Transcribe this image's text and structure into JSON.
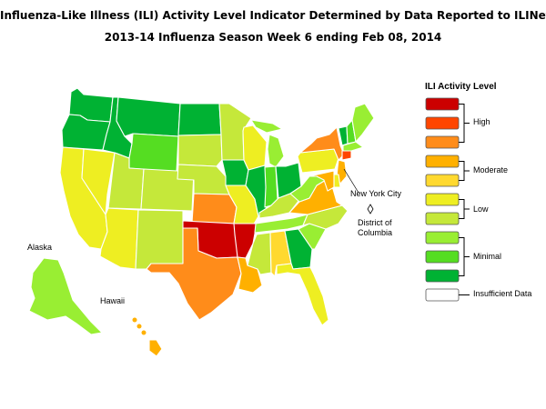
{
  "header": {
    "title": "Influenza-Like Illness (ILI) Activity Level Indicator Determined by Data Reported to ILINet",
    "subtitle": "2013-14  Influenza Season Week  6 ending Feb 08, 2014"
  },
  "legend": {
    "title": "ILI Activity Level",
    "levels": [
      {
        "level": 10,
        "color": "#cc0000"
      },
      {
        "level": 9,
        "color": "#ff4500"
      },
      {
        "level": 8,
        "color": "#ff8c1a"
      },
      {
        "level": 7,
        "color": "#ffb000"
      },
      {
        "level": 6,
        "color": "#ffd92f"
      },
      {
        "level": 5,
        "color": "#eeee22"
      },
      {
        "level": 4,
        "color": "#c5e83a"
      },
      {
        "level": 3,
        "color": "#99ee33"
      },
      {
        "level": 2,
        "color": "#55dd22"
      },
      {
        "level": 1,
        "color": "#00b233"
      }
    ],
    "groups": [
      {
        "label": "High"
      },
      {
        "label": "Moderate"
      },
      {
        "label": "Low"
      },
      {
        "label": "Minimal"
      }
    ],
    "insufficient": {
      "label": "Insufficient Data",
      "color": "#ffffff"
    }
  },
  "labels": {
    "nyc": "New York City",
    "dc": "District of Columbia",
    "alaska": "Alaska",
    "hawaii": "Hawaii"
  },
  "regions": [
    {
      "name": "WA",
      "level": 1
    },
    {
      "name": "OR",
      "level": 1
    },
    {
      "name": "CA",
      "level": 5
    },
    {
      "name": "NV",
      "level": 5
    },
    {
      "name": "ID",
      "level": 1
    },
    {
      "name": "MT",
      "level": 1
    },
    {
      "name": "WY",
      "level": 2
    },
    {
      "name": "UT",
      "level": 4
    },
    {
      "name": "CO",
      "level": 4
    },
    {
      "name": "AZ",
      "level": 5
    },
    {
      "name": "NM",
      "level": 4
    },
    {
      "name": "ND",
      "level": 1
    },
    {
      "name": "SD",
      "level": 4
    },
    {
      "name": "NE",
      "level": 4
    },
    {
      "name": "KS",
      "level": 8
    },
    {
      "name": "OK",
      "level": 10
    },
    {
      "name": "TX",
      "level": 8
    },
    {
      "name": "MN",
      "level": 4
    },
    {
      "name": "IA",
      "level": 1
    },
    {
      "name": "MO",
      "level": 5
    },
    {
      "name": "AR",
      "level": 10
    },
    {
      "name": "LA",
      "level": 7
    },
    {
      "name": "WI",
      "level": 5
    },
    {
      "name": "IL",
      "level": 1
    },
    {
      "name": "MI",
      "level": 3
    },
    {
      "name": "IN",
      "level": 2
    },
    {
      "name": "OH",
      "level": 1
    },
    {
      "name": "KY",
      "level": 4
    },
    {
      "name": "TN",
      "level": 3
    },
    {
      "name": "MS",
      "level": 4
    },
    {
      "name": "AL",
      "level": 6
    },
    {
      "name": "GA",
      "level": 1
    },
    {
      "name": "FL",
      "level": 5
    },
    {
      "name": "SC",
      "level": 3
    },
    {
      "name": "NC",
      "level": 4
    },
    {
      "name": "VA",
      "level": 7
    },
    {
      "name": "WV",
      "level": 3
    },
    {
      "name": "PA",
      "level": 5
    },
    {
      "name": "NY",
      "level": 8
    },
    {
      "name": "VT",
      "level": 1
    },
    {
      "name": "NH",
      "level": 2
    },
    {
      "name": "ME",
      "level": 3
    },
    {
      "name": "MA",
      "level": 3
    },
    {
      "name": "CT",
      "level": 9
    },
    {
      "name": "NJ",
      "level": 7
    },
    {
      "name": "DE",
      "level": 5
    },
    {
      "name": "MD",
      "level": 7
    },
    {
      "name": "AK",
      "level": 3
    },
    {
      "name": "HI",
      "level": 7
    }
  ]
}
